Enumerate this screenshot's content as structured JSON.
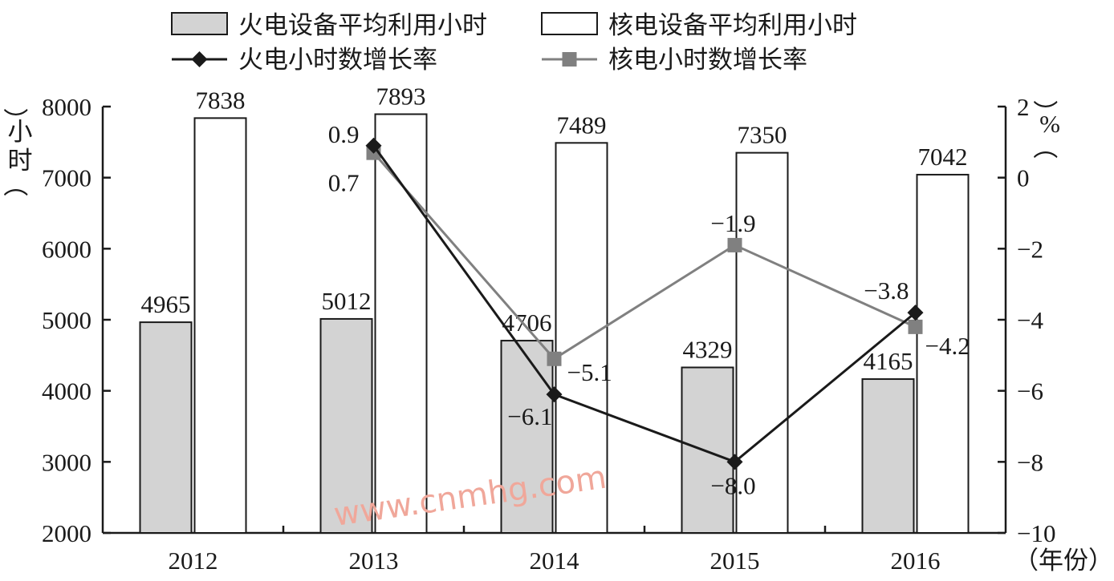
{
  "chart_data": {
    "type": "bar",
    "categories": [
      "2012",
      "2013",
      "2014",
      "2015",
      "2016"
    ],
    "series": [
      {
        "name": "火电设备平均利用小时",
        "kind": "bar",
        "axis": "left",
        "color": "#d3d3d3",
        "values": [
          4965,
          5012,
          4706,
          4329,
          4165
        ]
      },
      {
        "name": "核电设备平均利用小时",
        "kind": "bar",
        "axis": "left",
        "color": "#ffffff",
        "values": [
          7838,
          7893,
          7489,
          7350,
          7042
        ]
      },
      {
        "name": "火电小时数增长率",
        "kind": "line",
        "axis": "right",
        "color": "#1a1a1a",
        "marker": "diamond",
        "values": [
          null,
          0.9,
          -6.1,
          -8.0,
          -3.8
        ]
      },
      {
        "name": "核电小时数增长率",
        "kind": "line",
        "axis": "right",
        "color": "#808080",
        "marker": "square",
        "values": [
          null,
          0.7,
          -5.1,
          -1.9,
          -4.2
        ]
      }
    ],
    "bar_labels": {
      "s0": [
        "4965",
        "5012",
        "4706",
        "4329",
        "4165"
      ],
      "s1": [
        "7838",
        "7893",
        "7489",
        "7350",
        "7042"
      ]
    },
    "line_labels": {
      "s2": [
        null,
        "0.9",
        "−6.1",
        "−8.0",
        "−3.8"
      ],
      "s3": [
        null,
        "0.7",
        "−5.1",
        "−1.9",
        "−4.2"
      ]
    },
    "y_left": {
      "ylim": [
        2000,
        8000
      ],
      "ticks": [
        "2000",
        "3000",
        "4000",
        "5000",
        "6000",
        "7000",
        "8000"
      ],
      "label_chars": [
        "（",
        "小",
        "时",
        "）"
      ]
    },
    "y_right": {
      "ylim": [
        -10,
        2
      ],
      "ticks": [
        "−10",
        "−8",
        "−6",
        "−4",
        "−2",
        "0",
        "2"
      ],
      "label_chars": [
        "（",
        "%",
        "）"
      ]
    },
    "x_unit": "（年份）",
    "legend_position": "top",
    "grid": false
  },
  "watermark": "www.cnmhg.com"
}
